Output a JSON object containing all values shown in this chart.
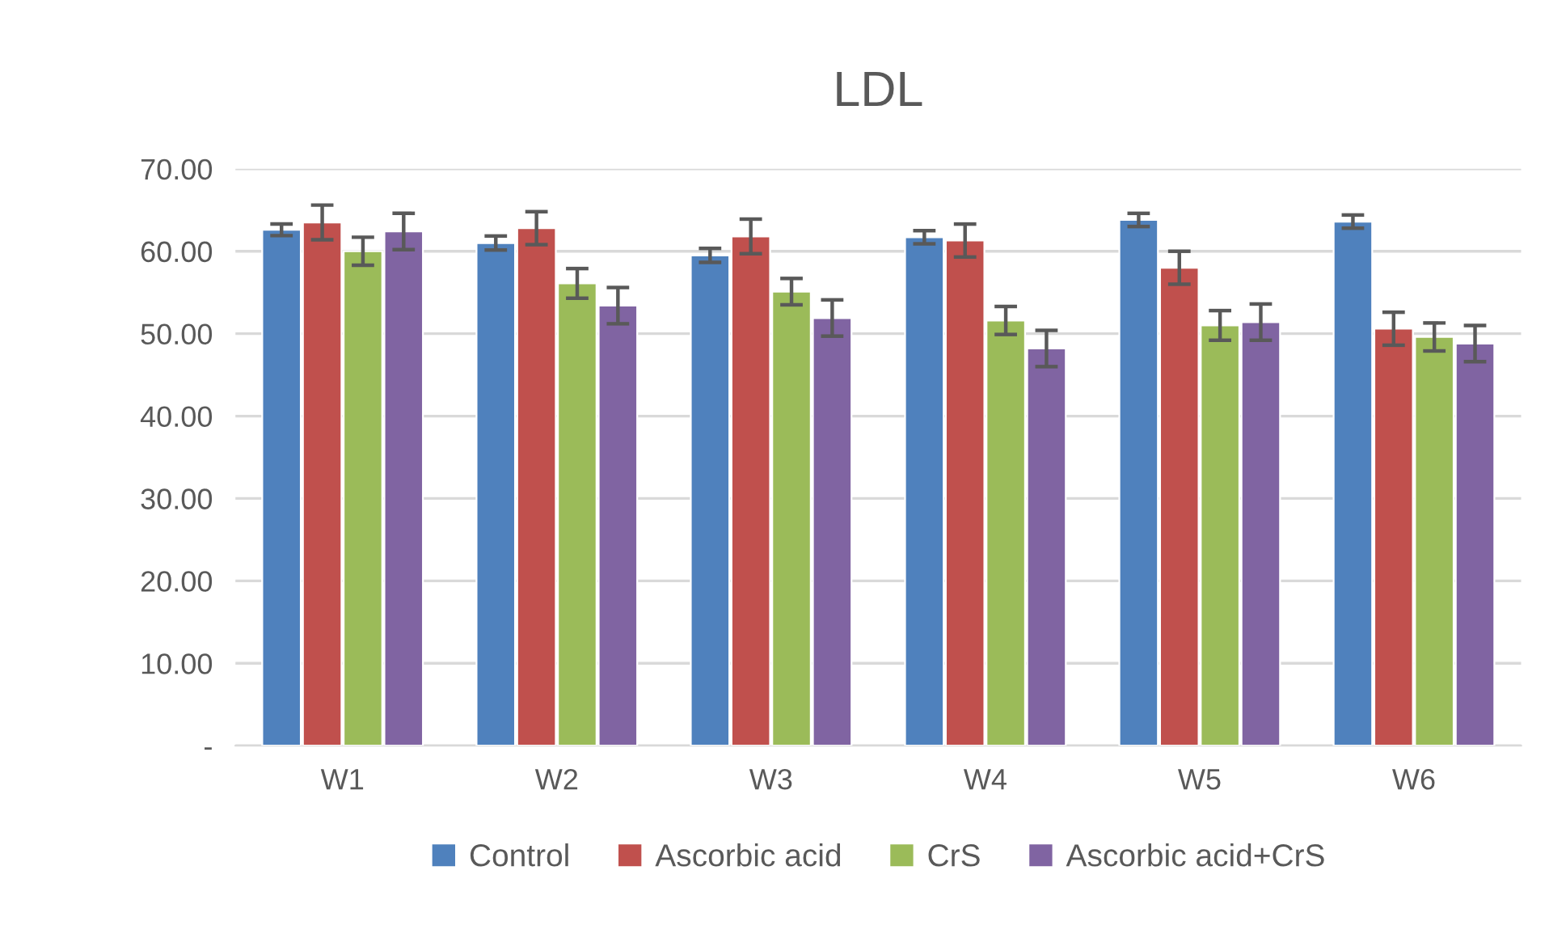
{
  "chart_data": {
    "type": "bar",
    "title": "LDL",
    "categories": [
      "W1",
      "W2",
      "W3",
      "W4",
      "W5",
      "W6"
    ],
    "series": [
      {
        "name": "Control",
        "color": "#4f81bd",
        "values": [
          62.6,
          61.0,
          59.5,
          61.7,
          63.8,
          63.6
        ],
        "errors": [
          0.7,
          0.85,
          0.85,
          0.8,
          0.8,
          0.8
        ]
      },
      {
        "name": "Ascorbic acid",
        "color": "#c0504d",
        "values": [
          63.5,
          62.8,
          61.8,
          61.3,
          58.0,
          50.6
        ],
        "errors": [
          2.1,
          2.0,
          2.1,
          2.0,
          2.0,
          2.0
        ]
      },
      {
        "name": "CrS",
        "color": "#9bbb59",
        "values": [
          60.0,
          56.1,
          55.1,
          51.6,
          51.0,
          49.6
        ],
        "errors": [
          1.7,
          1.8,
          1.6,
          1.7,
          1.8,
          1.7
        ]
      },
      {
        "name": "Ascorbic acid+CrS",
        "color": "#8064a2",
        "values": [
          62.4,
          53.4,
          51.9,
          48.2,
          51.4,
          48.8
        ],
        "errors": [
          2.2,
          2.2,
          2.2,
          2.2,
          2.2,
          2.2
        ]
      }
    ],
    "ylim": [
      0,
      70
    ],
    "yticks": [
      {
        "value": 0,
        "label": "-"
      },
      {
        "value": 10,
        "label": "10.00"
      },
      {
        "value": 20,
        "label": "20.00"
      },
      {
        "value": 30,
        "label": "30.00"
      },
      {
        "value": 40,
        "label": "40.00"
      },
      {
        "value": 50,
        "label": "50.00"
      },
      {
        "value": 60,
        "label": "60.00"
      },
      {
        "value": 70,
        "label": "70.00"
      }
    ],
    "grid": "y",
    "legend": "bottom"
  }
}
